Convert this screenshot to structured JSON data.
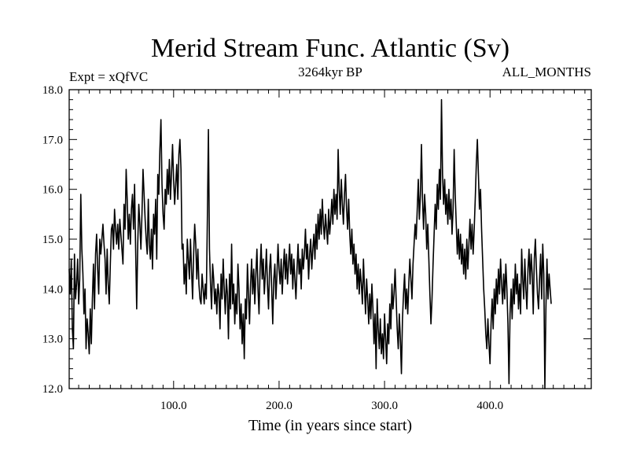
{
  "chart_data": {
    "type": "line",
    "title": "Merid Stream Func. Atlantic (Sv)",
    "subtitle_left": "Expt = xQfVC",
    "subtitle_center": "3264kyr BP",
    "subtitle_right": "ALL_MONTHS",
    "xlabel": "Time (in years since start)",
    "ylabel": "",
    "xlim": [
      1,
      496
    ],
    "ylim": [
      12.0,
      18.0
    ],
    "x_ticks": [
      100.0,
      200.0,
      300.0,
      400.0
    ],
    "x_tick_labels": [
      "100.0",
      "200.0",
      "300.0",
      "400.0"
    ],
    "y_ticks": [
      12.0,
      13.0,
      14.0,
      15.0,
      16.0,
      17.0,
      18.0
    ],
    "y_tick_labels": [
      "12.0",
      "13.0",
      "14.0",
      "15.0",
      "16.0",
      "17.0",
      "18.0"
    ],
    "grid": false,
    "series": [
      {
        "name": "Merid Stream Func. Atlantic",
        "color": "#000000",
        "x_start": 1,
        "x_step": 1,
        "values": [
          14.4,
          13.9,
          14.6,
          13.2,
          12.8,
          14.7,
          13.8,
          14.1,
          14.6,
          13.7,
          14.2,
          15.9,
          14.8,
          14.3,
          13.5,
          14.0,
          12.8,
          13.4,
          13.1,
          12.7,
          13.6,
          12.9,
          13.8,
          14.5,
          13.6,
          14.7,
          15.1,
          14.4,
          13.9,
          15.0,
          14.7,
          15.0,
          15.3,
          14.9,
          14.6,
          13.9,
          14.8,
          14.1,
          13.7,
          14.5,
          15.2,
          15.3,
          14.8,
          15.6,
          15.2,
          14.9,
          15.3,
          14.8,
          15.4,
          15.1,
          14.8,
          14.5,
          15.7,
          15.2,
          16.4,
          15.8,
          15.0,
          15.5,
          14.9,
          15.6,
          15.9,
          15.2,
          16.1,
          14.8,
          13.6,
          14.9,
          15.7,
          15.3,
          14.8,
          15.5,
          16.4,
          15.9,
          15.4,
          15.0,
          14.7,
          15.8,
          14.9,
          14.6,
          15.2,
          14.4,
          15.5,
          15.1,
          15.8,
          14.6,
          16.3,
          15.9,
          16.8,
          17.4,
          16.1,
          15.5,
          15.2,
          16.0,
          15.7,
          16.4,
          15.9,
          16.6,
          15.8,
          16.3,
          16.9,
          16.2,
          15.7,
          16.1,
          16.5,
          15.8,
          16.7,
          17.0,
          16.4,
          14.8,
          14.9,
          14.1,
          14.5,
          13.9,
          15.0,
          14.6,
          14.2,
          15.0,
          14.4,
          13.8,
          14.7,
          15.3,
          14.9,
          14.2,
          14.8,
          14.1,
          13.8,
          13.7,
          14.3,
          14.0,
          13.7,
          14.1,
          13.8,
          15.4,
          17.2,
          14.8,
          14.1,
          13.6,
          14.5,
          14.2,
          13.7,
          14.0,
          13.5,
          14.1,
          13.9,
          13.2,
          14.3,
          13.8,
          14.6,
          14.0,
          13.5,
          14.2,
          13.9,
          13.0,
          14.3,
          13.6,
          14.9,
          13.7,
          14.1,
          13.3,
          13.9,
          13.5,
          14.5,
          14.0,
          13.2,
          13.7,
          12.9,
          13.5,
          12.6,
          13.8,
          13.4,
          14.5,
          13.9,
          13.3,
          14.1,
          14.6,
          13.9,
          14.4,
          13.7,
          14.3,
          14.8,
          14.0,
          13.5,
          14.4,
          14.9,
          14.2,
          14.6,
          13.9,
          14.3,
          14.8,
          14.1,
          13.6,
          14.4,
          14.7,
          14.0,
          13.3,
          14.2,
          14.5,
          13.8,
          14.3,
          14.9,
          14.4,
          14.1,
          14.6,
          13.9,
          14.4,
          14.8,
          14.2,
          14.7,
          14.1,
          14.5,
          14.9,
          14.3,
          14.7,
          14.0,
          14.6,
          14.2,
          13.8,
          14.4,
          14.9,
          14.3,
          14.6,
          14.0,
          14.8,
          14.4,
          14.7,
          15.2,
          14.6,
          14.9,
          14.2,
          14.7,
          15.0,
          14.4,
          14.8,
          15.1,
          14.6,
          15.3,
          14.8,
          15.5,
          15.0,
          15.6,
          15.1,
          15.8,
          15.3,
          15.0,
          15.5,
          15.2,
          14.9,
          15.6,
          15.1,
          15.4,
          15.8,
          15.3,
          16.0,
          15.5,
          15.9,
          15.4,
          16.8,
          16.0,
          15.5,
          16.2,
          15.7,
          15.3,
          15.9,
          16.3,
          15.6,
          15.2,
          15.8,
          15.1,
          14.7,
          15.2,
          14.5,
          14.9,
          14.3,
          14.7,
          14.0,
          14.5,
          13.9,
          14.4,
          14.1,
          13.7,
          14.6,
          14.0,
          13.5,
          14.2,
          13.8,
          13.3,
          13.9,
          13.4,
          14.1,
          13.6,
          12.9,
          13.5,
          12.4,
          13.8,
          13.2,
          12.8,
          13.4,
          12.7,
          13.1,
          12.6,
          13.5,
          13.0,
          12.5,
          13.3,
          12.9,
          13.7,
          13.2,
          14.1,
          13.6,
          13.9,
          14.4,
          13.8,
          13.2,
          12.8,
          13.5,
          13.0,
          12.3,
          13.4,
          13.9,
          14.3,
          13.6,
          14.0,
          13.5,
          14.1,
          14.6,
          14.2,
          13.8,
          14.5,
          14.9,
          15.3,
          15.0,
          15.6,
          16.2,
          15.4,
          15.9,
          16.9,
          15.8,
          15.2,
          15.9,
          15.5,
          14.8,
          15.3,
          14.6,
          13.9,
          13.3,
          13.8,
          14.5,
          15.1,
          15.7,
          15.2,
          16.1,
          15.6,
          16.4,
          15.8,
          17.8,
          16.3,
          15.7,
          16.2,
          15.5,
          15.9,
          15.3,
          16.0,
          15.4,
          15.8,
          15.1,
          15.6,
          16.8,
          15.9,
          15.3,
          14.7,
          15.2,
          14.6,
          15.1,
          14.5,
          14.9,
          14.3,
          14.8,
          14.2,
          15.0,
          14.4,
          14.9,
          15.4,
          14.8,
          15.3,
          14.7,
          15.2,
          15.8,
          16.5,
          17.0,
          16.3,
          15.6,
          16.0,
          15.2,
          14.6,
          14.0,
          13.6,
          13.1,
          12.8,
          13.4,
          12.9,
          12.5,
          13.3,
          13.8,
          13.2,
          14.0,
          13.5,
          14.2,
          13.7,
          14.4,
          13.9,
          14.6,
          14.1,
          13.7,
          14.3,
          13.8,
          14.5,
          14.0,
          13.3,
          12.1,
          13.5,
          14.0,
          13.4,
          14.2,
          13.7,
          14.5,
          13.9,
          14.3,
          13.6,
          14.1,
          13.5,
          14.8,
          14.2,
          13.8,
          14.6,
          14.0,
          13.6,
          14.4,
          14.8,
          14.1,
          14.7,
          14.3,
          13.5,
          14.6,
          15.0,
          14.4,
          13.9,
          13.6,
          14.2,
          14.7,
          13.8,
          14.9,
          14.3,
          12.0,
          13.6,
          14.6,
          13.8,
          14.3,
          14.0,
          13.7
        ]
      }
    ]
  }
}
